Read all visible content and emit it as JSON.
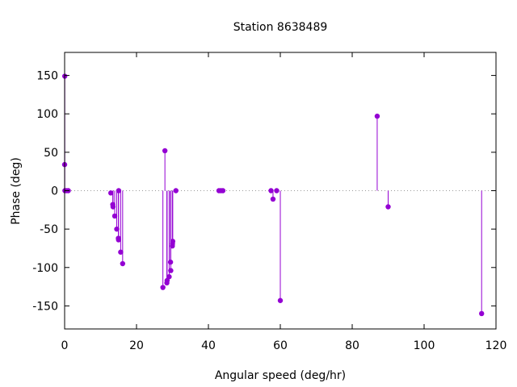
{
  "chart_data": {
    "type": "scatter",
    "style": "impulses with points",
    "title": "Station 8638489",
    "xlabel": "Angular speed (deg/hr)",
    "ylabel": "Phase (deg)",
    "xlim": [
      0,
      120
    ],
    "ylim": [
      -180,
      180
    ],
    "xticks": [
      0,
      20,
      40,
      60,
      80,
      100,
      120
    ],
    "yticks": [
      -150,
      -100,
      -50,
      0,
      50,
      100,
      150
    ],
    "zero_line": "dotted",
    "grid": false,
    "legend": "none",
    "series_color": "#9400d3",
    "points": [
      {
        "x": 0.0,
        "y": 34
      },
      {
        "x": 0.04,
        "y": 149
      },
      {
        "x": 0.08,
        "y": 0
      },
      {
        "x": 0.54,
        "y": 0
      },
      {
        "x": 1.02,
        "y": 0
      },
      {
        "x": 12.85,
        "y": -3
      },
      {
        "x": 13.4,
        "y": -18
      },
      {
        "x": 13.47,
        "y": -21
      },
      {
        "x": 13.94,
        "y": -33
      },
      {
        "x": 14.5,
        "y": -50
      },
      {
        "x": 14.96,
        "y": -62
      },
      {
        "x": 15.0,
        "y": -64
      },
      {
        "x": 15.04,
        "y": 0
      },
      {
        "x": 15.59,
        "y": -80
      },
      {
        "x": 16.14,
        "y": -95
      },
      {
        "x": 27.34,
        "y": -126
      },
      {
        "x": 27.9,
        "y": 52
      },
      {
        "x": 28.44,
        "y": -120
      },
      {
        "x": 28.51,
        "y": -117
      },
      {
        "x": 29.08,
        "y": -112
      },
      {
        "x": 29.46,
        "y": -93
      },
      {
        "x": 29.53,
        "y": -104
      },
      {
        "x": 29.96,
        "y": -72
      },
      {
        "x": 30.0,
        "y": -69
      },
      {
        "x": 30.08,
        "y": -66
      },
      {
        "x": 30.96,
        "y": 0
      },
      {
        "x": 42.93,
        "y": 0
      },
      {
        "x": 43.48,
        "y": 0
      },
      {
        "x": 44.03,
        "y": 0
      },
      {
        "x": 57.42,
        "y": 0
      },
      {
        "x": 57.97,
        "y": -11
      },
      {
        "x": 58.98,
        "y": 0
      },
      {
        "x": 60.0,
        "y": -143
      },
      {
        "x": 86.95,
        "y": 97
      },
      {
        "x": 90.0,
        "y": -21
      },
      {
        "x": 116.0,
        "y": -160
      }
    ]
  }
}
